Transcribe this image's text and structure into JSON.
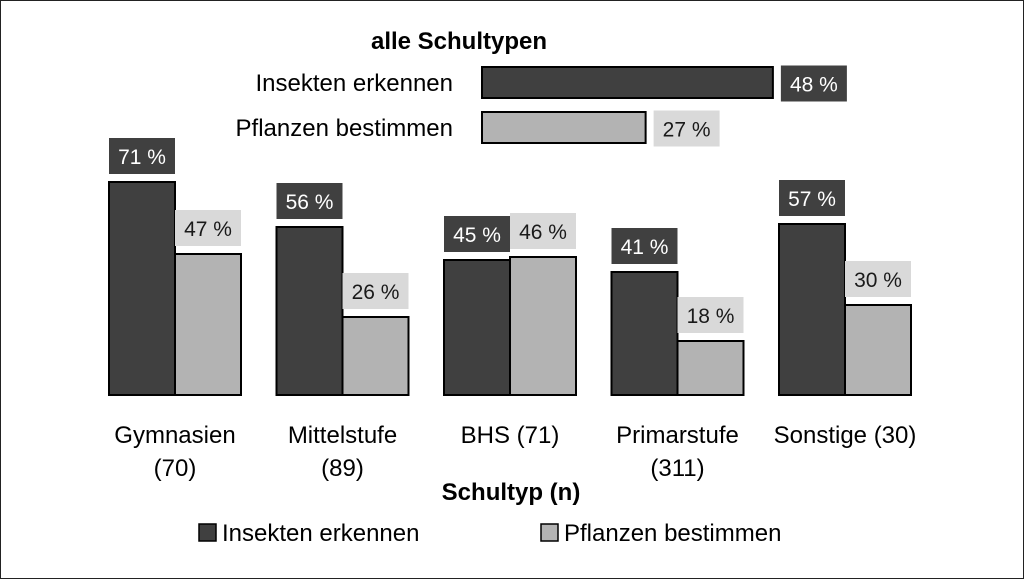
{
  "colors": {
    "insects": "#404040",
    "plants": "#b3b3b3",
    "label_dark_bg": "#404040",
    "label_light_bg": "#d9d9d9",
    "label_dark_text": "#ffffff",
    "label_light_text": "#1a1a1a",
    "outline": "#000000"
  },
  "chart_data": {
    "type": "bar",
    "xlabel": "Schultyp (n)",
    "ylabel": "",
    "ylim": [
      0,
      100
    ],
    "grid": false,
    "legend_position": "bottom",
    "categories": [
      [
        "Gymnasien",
        "(70)"
      ],
      [
        "Mittelstufe",
        "(89)"
      ],
      [
        "BHS (71)"
      ],
      [
        "Primarstufe",
        "(311)"
      ],
      [
        "Sonstige (30)"
      ]
    ],
    "series": [
      {
        "name": "Insekten erkennen",
        "values": [
          71,
          56,
          45,
          41,
          57
        ],
        "labels": [
          "71 %",
          "56 %",
          "45 %",
          "41 %",
          "57 %"
        ]
      },
      {
        "name": "Pflanzen bestimmen",
        "values": [
          47,
          26,
          46,
          18,
          30
        ],
        "labels": [
          "47 %",
          "26 %",
          "46 %",
          "18 %",
          "30 %"
        ]
      }
    ],
    "overall": {
      "title": "alle Schultypen",
      "type": "horizontal-bar",
      "items": [
        {
          "name": "Insekten erkennen",
          "value": 48,
          "label": "48 %"
        },
        {
          "name": "Pflanzen bestimmen",
          "value": 27,
          "label": "27 %"
        }
      ]
    }
  }
}
